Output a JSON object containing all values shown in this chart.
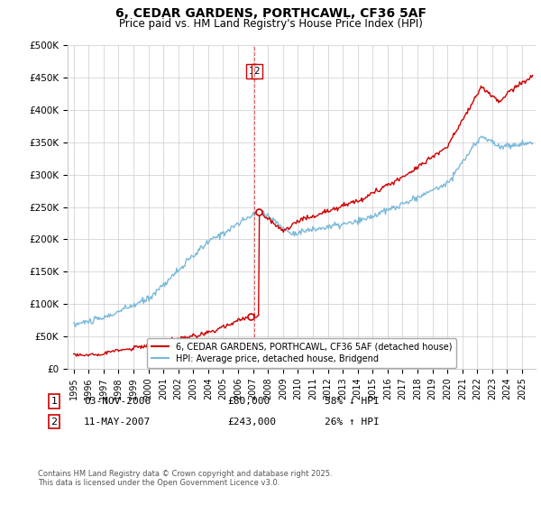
{
  "title": "6, CEDAR GARDENS, PORTHCAWL, CF36 5AF",
  "subtitle": "Price paid vs. HM Land Registry's House Price Index (HPI)",
  "ylim": [
    0,
    500000
  ],
  "yticks": [
    0,
    50000,
    100000,
    150000,
    200000,
    250000,
    300000,
    350000,
    400000,
    450000,
    500000
  ],
  "ytick_labels": [
    "£0",
    "£50K",
    "£100K",
    "£150K",
    "£200K",
    "£250K",
    "£300K",
    "£350K",
    "£400K",
    "£450K",
    "£500K"
  ],
  "hpi_color": "#7ab8d9",
  "price_color": "#cc0000",
  "dashed_color": "#cc0000",
  "background_color": "#ffffff",
  "grid_color": "#cccccc",
  "legend_label_red": "6, CEDAR GARDENS, PORTHCAWL, CF36 5AF (detached house)",
  "legend_label_blue": "HPI: Average price, detached house, Bridgend",
  "transaction1_date": "03-NOV-2006",
  "transaction1_price": "£80,000",
  "transaction1_hpi": "58% ↓ HPI",
  "transaction2_date": "11-MAY-2007",
  "transaction2_price": "£243,000",
  "transaction2_hpi": "26% ↑ HPI",
  "footnote": "Contains HM Land Registry data © Crown copyright and database right 2025.\nThis data is licensed under the Open Government Licence v3.0.",
  "transaction1_x": 2006.84,
  "transaction2_x": 2007.37,
  "transaction1_y": 80000,
  "transaction2_y": 243000,
  "dashed_line_x": 2007.08,
  "xlim_left": 1994.6,
  "xlim_right": 2025.9
}
